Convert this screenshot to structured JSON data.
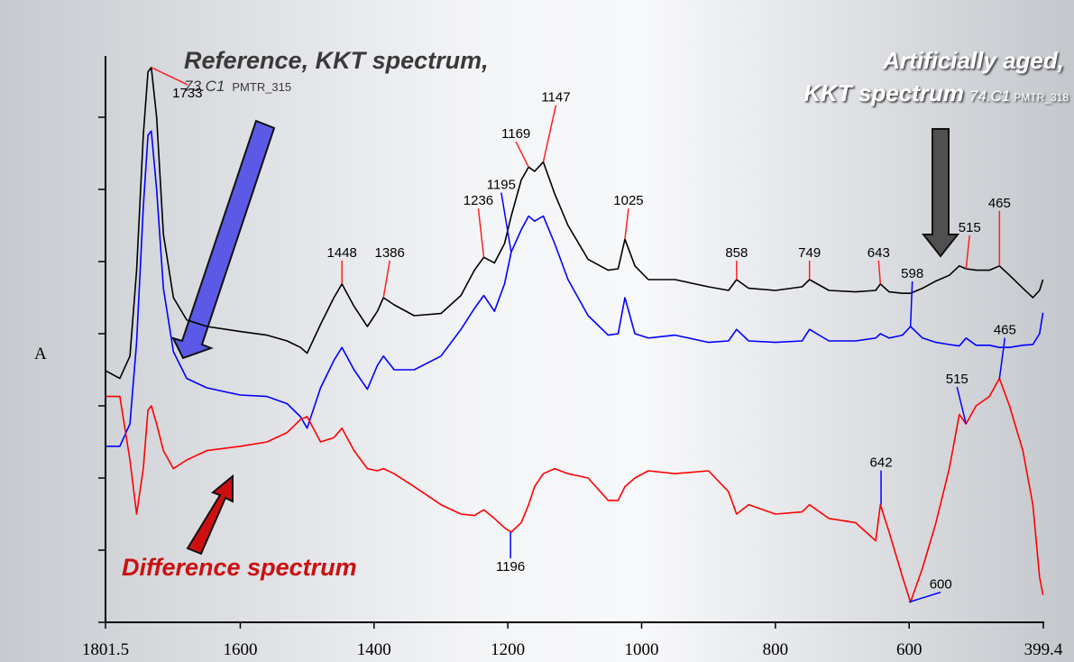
{
  "chart_data": {
    "type": "line",
    "ylabel": "A",
    "labels": {
      "reference_title": "Reference, KKT spectrum,",
      "reference_id": "73.C1",
      "reference_code": "PMTR_315",
      "aged_title": "Artificially aged,",
      "aged_subtitle": "KKT spectrum",
      "aged_id": "74.C1",
      "aged_code": "PMTR_318",
      "difference": "Difference spectrum"
    },
    "xlim": [
      1801.5,
      399.4
    ],
    "xticks": [
      1801.5,
      1600,
      1400,
      1200,
      1000,
      800,
      600,
      399.4
    ],
    "ylim": [
      0,
      78.5
    ],
    "yticks": [
      0,
      10,
      20,
      30,
      40,
      50,
      60,
      70
    ],
    "x": [
      1800,
      1780,
      1765,
      1755,
      1745,
      1738,
      1733,
      1725,
      1715,
      1700,
      1680,
      1650,
      1600,
      1560,
      1530,
      1510,
      1500,
      1480,
      1460,
      1448,
      1430,
      1410,
      1395,
      1386,
      1370,
      1340,
      1300,
      1270,
      1250,
      1236,
      1220,
      1205,
      1195,
      1180,
      1169,
      1160,
      1147,
      1130,
      1110,
      1080,
      1050,
      1035,
      1025,
      1010,
      990,
      950,
      900,
      870,
      858,
      840,
      800,
      760,
      749,
      720,
      680,
      650,
      643,
      630,
      610,
      598,
      580,
      560,
      540,
      525,
      515,
      500,
      480,
      465,
      450,
      430,
      415,
      405,
      400
    ],
    "series": [
      {
        "color": "#000000",
        "peak_color": "#ff2020",
        "values": [
          34.8,
          33.8,
          36.9,
          48.8,
          67.5,
          76.3,
          76.9,
          70,
          53.8,
          45,
          41.9,
          41,
          40.3,
          39.8,
          39,
          38.1,
          37.3,
          41.3,
          45,
          46.9,
          43.8,
          41,
          43.1,
          45,
          44,
          42.5,
          42.8,
          45.3,
          48.8,
          50.6,
          49.8,
          52.5,
          56.3,
          61.3,
          63.1,
          62.5,
          63.8,
          59.4,
          55,
          50.3,
          48.8,
          49,
          53.1,
          49.4,
          47.5,
          47.5,
          46.5,
          46,
          47.5,
          46.3,
          46,
          46.5,
          47.5,
          46,
          45.8,
          46,
          46.9,
          45.8,
          45.6,
          45.6,
          46.3,
          47.3,
          48.1,
          49.4,
          49,
          48.8,
          48.8,
          49.4,
          48.1,
          46.3,
          45,
          46,
          47.5
        ],
        "peaks": [
          {
            "label": "1733",
            "x": 1733
          },
          {
            "label": "1448",
            "x": 1448
          },
          {
            "label": "1386",
            "x": 1386
          },
          {
            "label": "1236",
            "x": 1236
          },
          {
            "label": "1169",
            "x": 1169
          },
          {
            "label": "1147",
            "x": 1147
          },
          {
            "label": "1025",
            "x": 1025
          },
          {
            "label": "858",
            "x": 858
          },
          {
            "label": "749",
            "x": 749
          },
          {
            "label": "643",
            "x": 643
          },
          {
            "label": "515",
            "x": 515
          },
          {
            "label": "465",
            "x": 465
          }
        ]
      },
      {
        "color": "#0000ff",
        "peak_color": "#0000ff",
        "values": [
          24.4,
          24.4,
          27.5,
          38.8,
          57.5,
          67.5,
          68.1,
          60,
          46.3,
          37.5,
          33.8,
          32.5,
          31.5,
          31.3,
          30.3,
          28.5,
          26.9,
          32.5,
          36.3,
          38.1,
          35,
          32.3,
          35.6,
          36.9,
          35,
          35,
          36.9,
          40.6,
          43.5,
          45.3,
          43.1,
          46.9,
          51.3,
          54.4,
          56.3,
          55.6,
          56.3,
          52.5,
          47.5,
          42.5,
          39.8,
          40,
          45,
          40,
          39.4,
          39.8,
          38.8,
          39,
          40.6,
          39,
          38.8,
          39,
          40.6,
          39,
          39,
          39.4,
          40,
          39.4,
          39.8,
          41,
          39.4,
          38.8,
          38.5,
          38.3,
          39.4,
          38.4,
          38.4,
          38.1,
          38.1,
          38.4,
          38.5,
          40,
          42.9
        ],
        "peaks": [
          {
            "label": "1195",
            "x": 1195
          },
          {
            "label": "598",
            "x": 598
          }
        ]
      },
      {
        "color": "#ff0000",
        "peak_color": "#0000ff",
        "values": [
          31.3,
          31.3,
          22.5,
          15,
          21.3,
          29.4,
          30,
          27.5,
          23.8,
          21.3,
          22.5,
          23.8,
          24.4,
          25,
          26.3,
          28.1,
          28.5,
          25,
          25.6,
          26.9,
          23.8,
          21.3,
          21,
          21.3,
          20.6,
          18.8,
          16.3,
          15,
          14.8,
          15.6,
          14.4,
          13.1,
          12.5,
          13.8,
          16.3,
          18.8,
          20.6,
          21.3,
          20.6,
          20,
          16.9,
          16.9,
          18.8,
          20,
          21,
          20.6,
          21,
          18.1,
          15,
          16.3,
          15,
          15.3,
          16.3,
          14.4,
          13.8,
          11.3,
          16.3,
          12.5,
          6.3,
          2.8,
          7.5,
          13.8,
          21.3,
          28.8,
          27.5,
          30,
          31.3,
          33.8,
          30,
          23.8,
          16.3,
          6.3,
          3.8
        ],
        "peaks": [
          {
            "label": "1196",
            "x": 1196
          },
          {
            "label": "642",
            "x": 642
          },
          {
            "label": "600",
            "x": 600
          },
          {
            "label": "515",
            "x": 515
          },
          {
            "label": "465",
            "x": 465
          }
        ]
      }
    ]
  }
}
